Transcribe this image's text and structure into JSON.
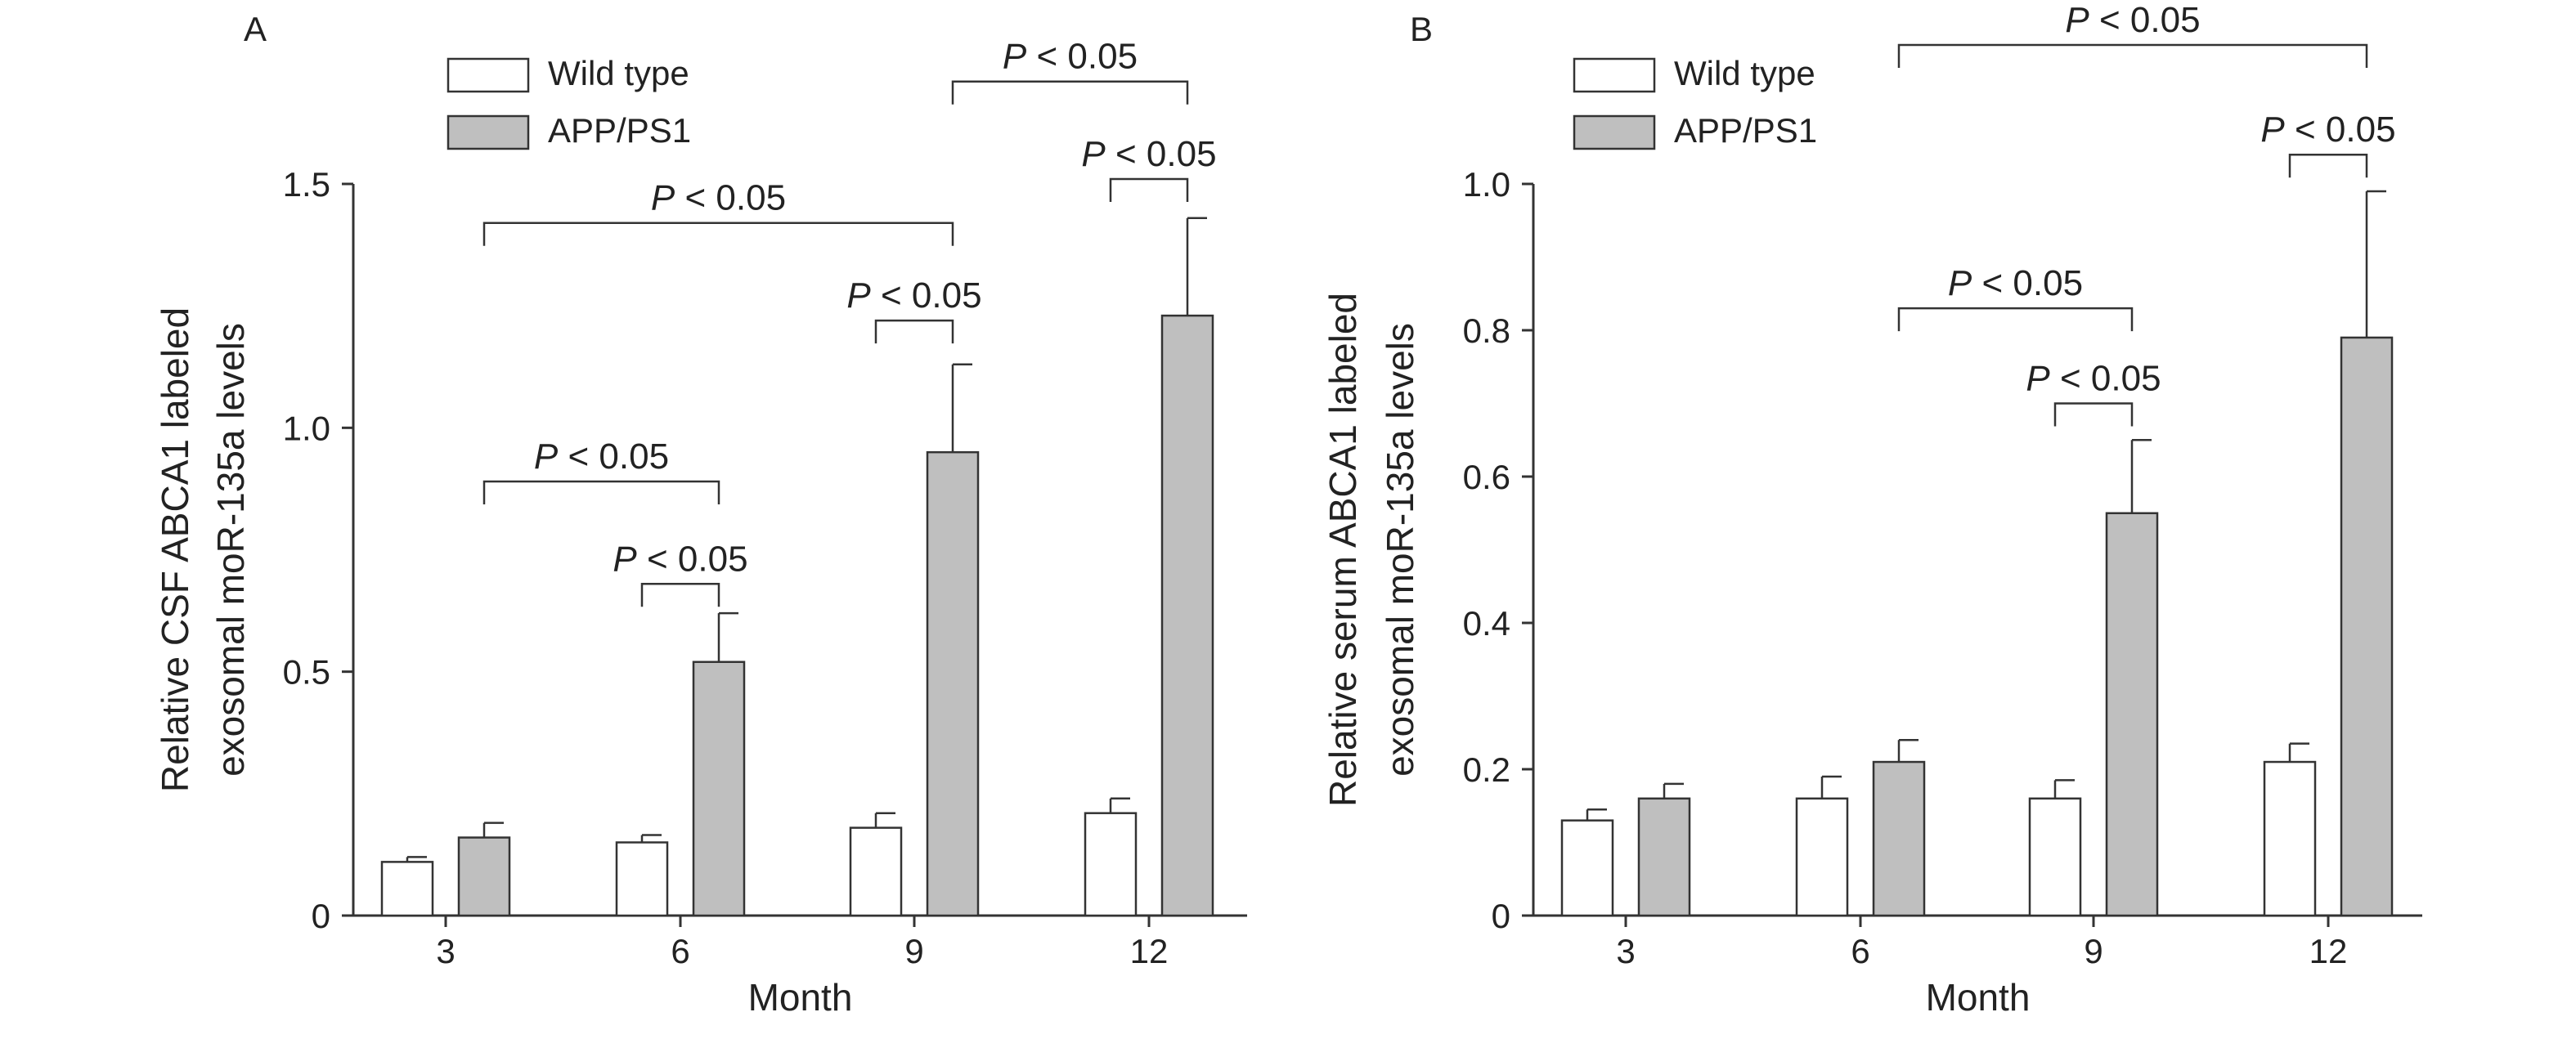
{
  "legend": {
    "items": [
      {
        "label": "Wild type",
        "color": "#ffffff"
      },
      {
        "label": "APP/PS1",
        "color": "#bfbfbf"
      }
    ]
  },
  "colors": {
    "wild_type": "#ffffff",
    "app_ps1": "#bfbfbf",
    "axis": "#333333"
  },
  "chart_data": [
    {
      "type": "bar",
      "panel_label": "A",
      "categories": [
        "3",
        "6",
        "9",
        "12"
      ],
      "series": [
        {
          "name": "Wild type",
          "values": [
            0.11,
            0.15,
            0.18,
            0.21
          ],
          "errors": [
            0.01,
            0.015,
            0.03,
            0.03
          ]
        },
        {
          "name": "APP/PS1",
          "values": [
            0.16,
            0.52,
            0.95,
            1.23
          ],
          "errors": [
            0.03,
            0.1,
            0.18,
            0.2
          ]
        }
      ],
      "xlabel": "Month",
      "ylabel": [
        "Relative CSF ABCA1 labeled",
        "exosomal moR-135a levels"
      ],
      "ylim": [
        0,
        1.5
      ],
      "yticks": [
        0,
        0.5,
        1.0,
        1.5
      ],
      "ytick_labels": [
        "0",
        "0.5",
        "1.0",
        "1.5"
      ],
      "grid": false,
      "legend_position": "top-left",
      "annotations": [
        {
          "text": "P < 0.05",
          "from_group": 1,
          "from_series": 0,
          "to_group": 1,
          "to_series": 1,
          "bracket_y": 0.68
        },
        {
          "text": "P < 0.05",
          "from_group": 0,
          "from_series": 1,
          "to_group": 1,
          "to_series": 1,
          "bracket_y": 0.89
        },
        {
          "text": "P < 0.05",
          "from_group": 2,
          "from_series": 0,
          "to_group": 2,
          "to_series": 1,
          "bracket_y": 1.22
        },
        {
          "text": "P < 0.05",
          "from_group": 0,
          "from_series": 1,
          "to_group": 2,
          "to_series": 1,
          "bracket_y": 1.42
        },
        {
          "text": "P < 0.05",
          "from_group": 3,
          "from_series": 0,
          "to_group": 3,
          "to_series": 1,
          "bracket_y": 1.51
        },
        {
          "text": "P < 0.05",
          "from_group": 2,
          "from_series": 1,
          "to_group": 3,
          "to_series": 1,
          "bracket_y": 1.71
        }
      ]
    },
    {
      "type": "bar",
      "panel_label": "B",
      "categories": [
        "3",
        "6",
        "9",
        "12"
      ],
      "series": [
        {
          "name": "Wild type",
          "values": [
            0.13,
            0.16,
            0.16,
            0.21
          ],
          "errors": [
            0.015,
            0.03,
            0.025,
            0.025
          ]
        },
        {
          "name": "APP/PS1",
          "values": [
            0.16,
            0.21,
            0.55,
            0.79
          ],
          "errors": [
            0.02,
            0.03,
            0.1,
            0.2
          ]
        }
      ],
      "xlabel": "Month",
      "ylabel": [
        "Relative serum ABCA1 labeled",
        "exosomal moR-135a levels"
      ],
      "ylim": [
        0,
        1.0
      ],
      "yticks": [
        0,
        0.2,
        0.4,
        0.6,
        0.8,
        1.0
      ],
      "ytick_labels": [
        "0",
        "0.2",
        "0.4",
        "0.6",
        "0.8",
        "1.0"
      ],
      "grid": false,
      "legend_position": "top-left",
      "annotations": [
        {
          "text": "P < 0.05",
          "from_group": 2,
          "from_series": 0,
          "to_group": 2,
          "to_series": 1,
          "bracket_y": 0.7
        },
        {
          "text": "P < 0.05",
          "from_group": 1,
          "from_series": 1,
          "to_group": 2,
          "to_series": 1,
          "bracket_y": 0.83
        },
        {
          "text": "P < 0.05",
          "from_group": 3,
          "from_series": 0,
          "to_group": 3,
          "to_series": 1,
          "bracket_y": 1.04
        },
        {
          "text": "P < 0.05",
          "from_group": 1,
          "from_series": 1,
          "to_group": 3,
          "to_series": 1,
          "bracket_y": 1.19
        }
      ]
    }
  ]
}
